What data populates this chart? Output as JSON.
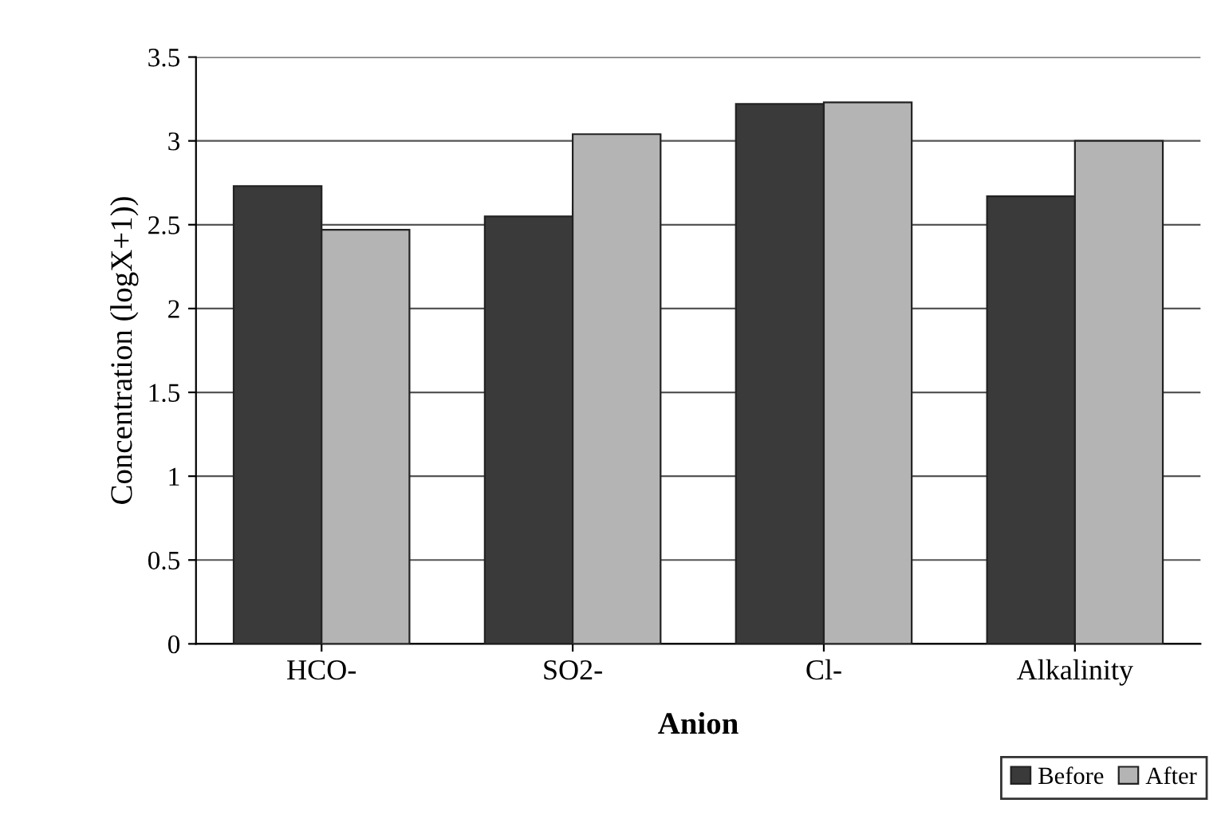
{
  "chart_data": {
    "type": "bar",
    "xlabel": "Anion",
    "ylabel": "Concentration (logX+1))",
    "categories": [
      "HCO-",
      "SO2-",
      "Cl-",
      "Alkalinity"
    ],
    "series": [
      {
        "name": "Before",
        "color": "#3a3a3a",
        "values": [
          2.73,
          2.55,
          3.22,
          2.67
        ]
      },
      {
        "name": "After",
        "color": "#b4b4b4",
        "values": [
          2.47,
          3.04,
          3.23,
          3.0
        ]
      }
    ],
    "ylim": [
      0,
      3.5
    ],
    "yticks": [
      0,
      {
        "value": 0.5,
        "label": "0.5"
      },
      1,
      {
        "value": 1.5,
        "label": "1.5"
      },
      2,
      {
        "value": 2.5,
        "label": "2.5"
      },
      3,
      {
        "value": 3.5,
        "label": "3.5"
      }
    ],
    "grid": "y",
    "legend": "bottom right"
  }
}
